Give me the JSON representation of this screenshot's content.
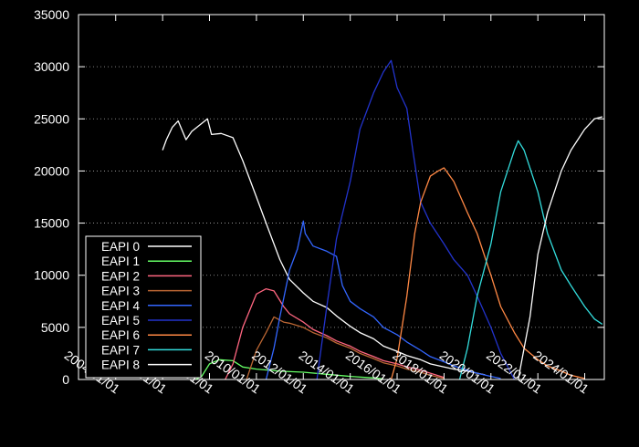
{
  "chart_data": {
    "type": "line",
    "title": "",
    "xlabel": "",
    "ylabel": "",
    "ylim": [
      0,
      35000
    ],
    "xlim": [
      "2002-06-01",
      "2024-11-01"
    ],
    "y_ticks": [
      0,
      5000,
      10000,
      15000,
      20000,
      25000,
      30000,
      35000
    ],
    "x_ticks": [
      "2004/01/01",
      "2006/01/01",
      "2008/01/01",
      "2010/01/01",
      "2012/01/01",
      "2014/01/01",
      "2016/01/01",
      "2018/01/01",
      "2020/01/01",
      "2022/01/01",
      "2024/01/01"
    ],
    "grid": {
      "y": true,
      "x": false,
      "style": "dotted"
    },
    "legend_position": "bottom-left",
    "background": "#000000",
    "series": [
      {
        "name": "EAPI 0",
        "color": "#ffffff",
        "points": [
          [
            "2006-01-01",
            22000
          ],
          [
            "2006-03-01",
            23000
          ],
          [
            "2006-06-01",
            24200
          ],
          [
            "2006-09-01",
            24800
          ],
          [
            "2007-01-01",
            23000
          ],
          [
            "2007-04-01",
            23800
          ],
          [
            "2007-08-01",
            24400
          ],
          [
            "2007-12-01",
            25000
          ],
          [
            "2008-02-01",
            23500
          ],
          [
            "2008-07-01",
            23600
          ],
          [
            "2009-01-01",
            23200
          ],
          [
            "2009-06-01",
            21000
          ],
          [
            "2010-01-01",
            17500
          ],
          [
            "2010-06-01",
            15000
          ],
          [
            "2011-01-01",
            11500
          ],
          [
            "2011-06-01",
            9600
          ],
          [
            "2012-01-01",
            8300
          ],
          [
            "2012-06-01",
            7500
          ],
          [
            "2013-01-01",
            6900
          ],
          [
            "2013-06-01",
            6100
          ],
          [
            "2014-01-01",
            5100
          ],
          [
            "2014-06-01",
            4500
          ],
          [
            "2015-01-01",
            3900
          ],
          [
            "2015-06-01",
            3200
          ],
          [
            "2016-01-01",
            2700
          ],
          [
            "2016-06-01",
            2300
          ],
          [
            "2017-01-01",
            1900
          ],
          [
            "2017-06-01",
            1500
          ],
          [
            "2018-01-01",
            1200
          ],
          [
            "2018-06-01",
            1000
          ],
          [
            "2019-01-01",
            800
          ],
          [
            "2019-06-01",
            600
          ],
          [
            "2019-10-01",
            450
          ]
        ]
      },
      {
        "name": "EAPI 1",
        "color": "#66ff66",
        "points": [
          [
            "2007-06-01",
            0
          ],
          [
            "2007-09-01",
            300
          ],
          [
            "2008-01-01",
            1500
          ],
          [
            "2008-06-01",
            1900
          ],
          [
            "2009-01-01",
            1800
          ],
          [
            "2009-06-01",
            1200
          ],
          [
            "2010-01-01",
            1000
          ],
          [
            "2011-01-01",
            800
          ],
          [
            "2012-01-01",
            700
          ],
          [
            "2013-01-01",
            500
          ],
          [
            "2014-01-01",
            300
          ],
          [
            "2015-01-01",
            150
          ],
          [
            "2015-06-01",
            50
          ]
        ]
      },
      {
        "name": "EAPI 2",
        "color": "#ff6680",
        "points": [
          [
            "2008-09-01",
            0
          ],
          [
            "2009-01-01",
            1500
          ],
          [
            "2009-06-01",
            5000
          ],
          [
            "2010-01-01",
            8200
          ],
          [
            "2010-06-01",
            8700
          ],
          [
            "2010-10-01",
            8500
          ],
          [
            "2011-03-01",
            7000
          ],
          [
            "2011-06-01",
            6300
          ],
          [
            "2012-01-01",
            5500
          ],
          [
            "2012-06-01",
            4800
          ],
          [
            "2013-01-01",
            4200
          ],
          [
            "2013-06-01",
            3700
          ],
          [
            "2014-01-01",
            3200
          ],
          [
            "2014-06-01",
            2700
          ],
          [
            "2015-01-01",
            2200
          ],
          [
            "2015-06-01",
            1800
          ],
          [
            "2016-01-01",
            1500
          ],
          [
            "2016-06-01",
            1200
          ],
          [
            "2017-01-01",
            900
          ],
          [
            "2017-06-01",
            600
          ],
          [
            "2018-01-01",
            200
          ]
        ]
      },
      {
        "name": "EAPI 3",
        "color": "#bb6633",
        "points": [
          [
            "2009-08-01",
            0
          ],
          [
            "2010-01-01",
            2800
          ],
          [
            "2010-06-01",
            4500
          ],
          [
            "2010-10-01",
            6000
          ],
          [
            "2011-03-01",
            5500
          ],
          [
            "2011-06-01",
            5400
          ],
          [
            "2012-01-01",
            5000
          ],
          [
            "2012-06-01",
            4500
          ],
          [
            "2013-01-01",
            4000
          ],
          [
            "2013-06-01",
            3500
          ],
          [
            "2014-01-01",
            3000
          ],
          [
            "2014-06-01",
            2500
          ],
          [
            "2015-01-01",
            2000
          ],
          [
            "2015-06-01",
            1600
          ],
          [
            "2016-01-01",
            1300
          ],
          [
            "2016-06-01",
            1000
          ],
          [
            "2017-01-01",
            700
          ],
          [
            "2017-06-01",
            400
          ],
          [
            "2018-01-01",
            100
          ]
        ]
      },
      {
        "name": "EAPI 4",
        "color": "#3366ff",
        "points": [
          [
            "2010-06-01",
            0
          ],
          [
            "2010-10-01",
            3000
          ],
          [
            "2011-01-01",
            6000
          ],
          [
            "2011-06-01",
            10500
          ],
          [
            "2011-10-01",
            12500
          ],
          [
            "2012-01-01",
            15200
          ],
          [
            "2012-02-01",
            14000
          ],
          [
            "2012-06-01",
            12800
          ],
          [
            "2013-01-01",
            12300
          ],
          [
            "2013-06-01",
            11800
          ],
          [
            "2013-09-01",
            9000
          ],
          [
            "2014-01-01",
            7500
          ],
          [
            "2014-06-01",
            6800
          ],
          [
            "2015-01-01",
            6000
          ],
          [
            "2015-06-01",
            5000
          ],
          [
            "2016-01-01",
            4300
          ],
          [
            "2016-06-01",
            3600
          ],
          [
            "2017-01-01",
            2800
          ],
          [
            "2017-06-01",
            2200
          ],
          [
            "2018-01-01",
            1700
          ],
          [
            "2018-06-01",
            1300
          ],
          [
            "2019-01-01",
            900
          ],
          [
            "2019-06-01",
            600
          ],
          [
            "2020-01-01",
            300
          ],
          [
            "2020-06-01",
            100
          ]
        ]
      },
      {
        "name": "EAPI 5",
        "color": "#2233cc",
        "points": [
          [
            "2012-08-01",
            0
          ],
          [
            "2013-01-01",
            7000
          ],
          [
            "2013-06-01",
            13500
          ],
          [
            "2014-01-01",
            19000
          ],
          [
            "2014-06-01",
            24000
          ],
          [
            "2015-01-01",
            27500
          ],
          [
            "2015-06-01",
            29500
          ],
          [
            "2015-10-01",
            30600
          ],
          [
            "2016-01-01",
            28000
          ],
          [
            "2016-06-01",
            26000
          ],
          [
            "2016-09-01",
            22000
          ],
          [
            "2017-01-01",
            17000
          ],
          [
            "2017-06-01",
            15000
          ],
          [
            "2018-01-01",
            13000
          ],
          [
            "2018-06-01",
            11500
          ],
          [
            "2019-01-01",
            10000
          ],
          [
            "2019-06-01",
            8000
          ],
          [
            "2020-01-01",
            5000
          ],
          [
            "2020-06-01",
            2500
          ],
          [
            "2021-01-01",
            0
          ]
        ]
      },
      {
        "name": "EAPI 6",
        "color": "#ff8844",
        "points": [
          [
            "2015-10-01",
            0
          ],
          [
            "2016-01-01",
            2000
          ],
          [
            "2016-06-01",
            8000
          ],
          [
            "2016-10-01",
            14000
          ],
          [
            "2017-01-01",
            17000
          ],
          [
            "2017-06-01",
            19500
          ],
          [
            "2017-10-01",
            20000
          ],
          [
            "2018-01-01",
            20300
          ],
          [
            "2018-06-01",
            19000
          ],
          [
            "2019-01-01",
            16000
          ],
          [
            "2019-06-01",
            14000
          ],
          [
            "2020-01-01",
            10000
          ],
          [
            "2020-06-01",
            7000
          ],
          [
            "2021-01-01",
            4500
          ],
          [
            "2021-06-01",
            3000
          ],
          [
            "2022-01-01",
            1900
          ],
          [
            "2022-06-01",
            1300
          ],
          [
            "2023-01-01",
            800
          ],
          [
            "2023-06-01",
            400
          ],
          [
            "2024-01-01",
            100
          ]
        ]
      },
      {
        "name": "EAPI 7",
        "color": "#33dddd",
        "points": [
          [
            "2018-09-01",
            0
          ],
          [
            "2019-01-01",
            3000
          ],
          [
            "2019-06-01",
            8000
          ],
          [
            "2020-01-01",
            13000
          ],
          [
            "2020-06-01",
            18000
          ],
          [
            "2021-01-01",
            22000
          ],
          [
            "2021-03-01",
            22900
          ],
          [
            "2021-06-01",
            22000
          ],
          [
            "2022-01-01",
            18000
          ],
          [
            "2022-06-01",
            14000
          ],
          [
            "2023-01-01",
            10500
          ],
          [
            "2023-06-01",
            9000
          ],
          [
            "2024-01-01",
            7000
          ],
          [
            "2024-06-01",
            5800
          ],
          [
            "2024-10-01",
            5300
          ]
        ]
      },
      {
        "name": "EAPI 8",
        "color": "#ffffff",
        "points": [
          [
            "2021-03-01",
            0
          ],
          [
            "2021-09-01",
            6000
          ],
          [
            "2022-01-01",
            12000
          ],
          [
            "2022-06-01",
            16000
          ],
          [
            "2023-01-01",
            20000
          ],
          [
            "2023-06-01",
            22000
          ],
          [
            "2024-01-01",
            24000
          ],
          [
            "2024-06-01",
            25000
          ],
          [
            "2024-10-01",
            25200
          ]
        ]
      }
    ]
  }
}
